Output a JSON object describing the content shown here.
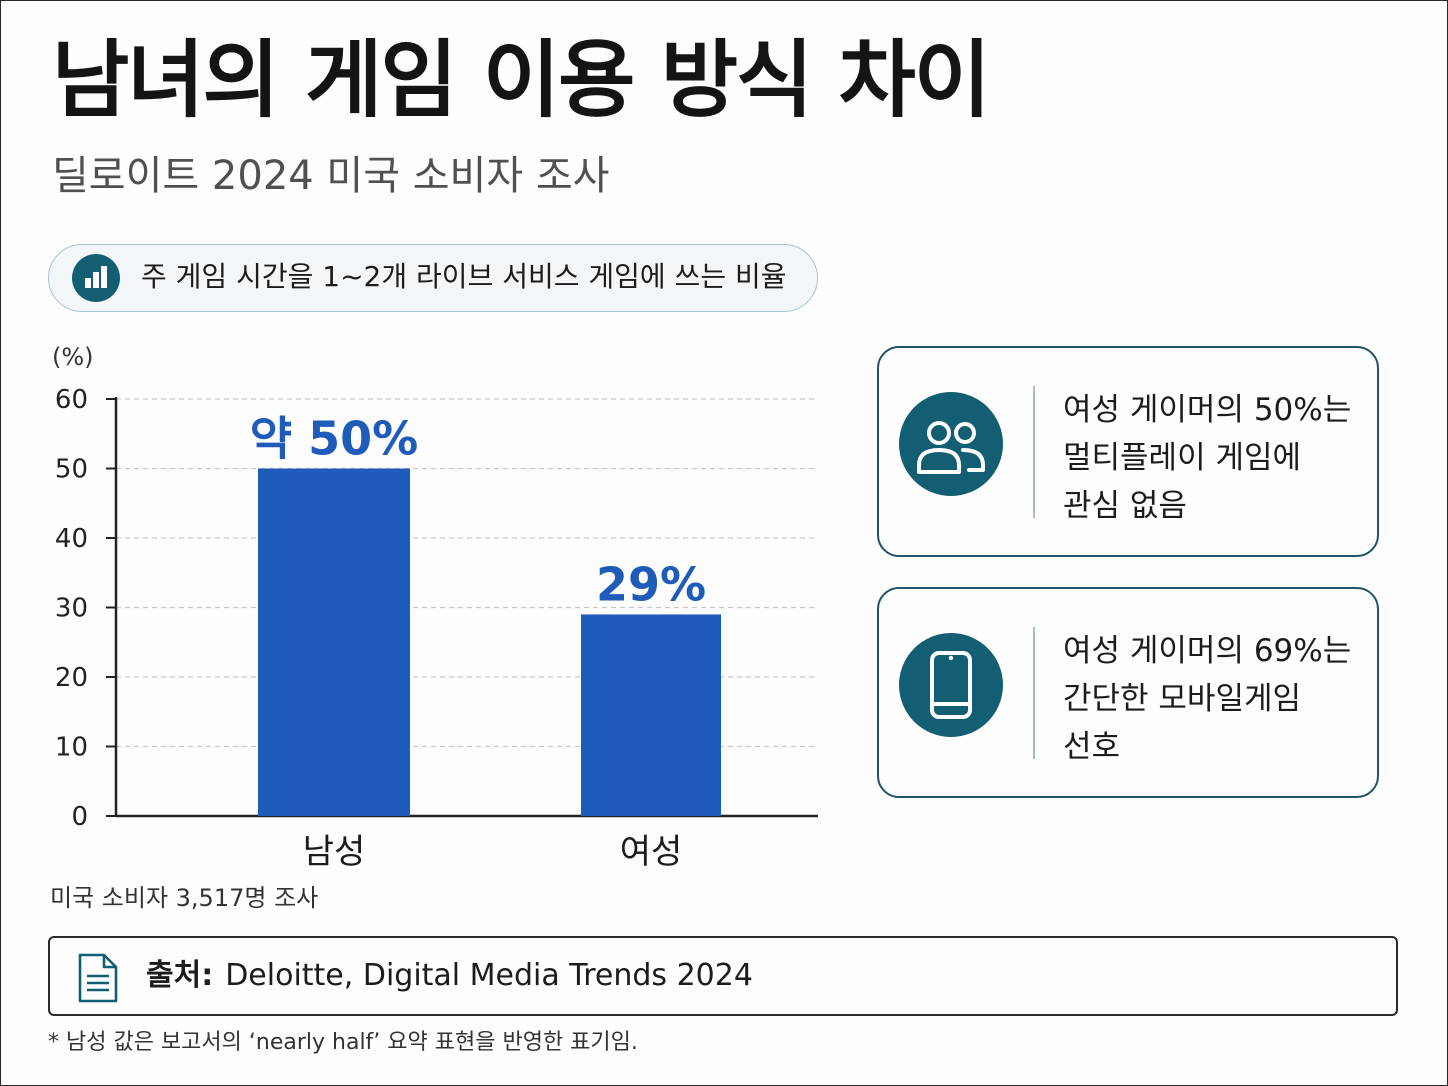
{
  "header": {
    "title": "남녀의 게임 이용 방식 차이",
    "subtitle": "딜로이트 2024 미국 소비자 조사"
  },
  "metric_pill": {
    "icon": "bar-chart-icon",
    "label": "주 게임 시간을 1~2개 라이브 서비스 게임에 쓰는 비율"
  },
  "chart_data": {
    "type": "bar",
    "categories": [
      "남성",
      "여성"
    ],
    "values": [
      50,
      29
    ],
    "value_labels": [
      "약 50%",
      "29%"
    ],
    "ylabel": "(%)",
    "ylim": [
      0,
      60
    ],
    "yticks": [
      0,
      10,
      20,
      30,
      40,
      50,
      60
    ],
    "grid": true,
    "colors": {
      "bar": "#1f5cba",
      "value_label": "#1f5cba"
    }
  },
  "insight_cards": [
    {
      "icon": "users-icon",
      "lines": [
        "여성 게이머의 50%는",
        "멀티플레이 게임에",
        "관심 없음"
      ]
    },
    {
      "icon": "smartphone-icon",
      "lines": [
        "여성 게이머의 69%는",
        "간단한 모바일게임",
        "선호"
      ]
    }
  ],
  "sample_note": "미국 소비자 3,517명 조사",
  "source": {
    "icon": "document-icon",
    "label": "출처:",
    "text": "Deloitte, Digital Media Trends 2024"
  },
  "footnote": "* 남성 값은 보고서의 ‘nearly half’ 요약 표현을 반영한 표기임.",
  "theme": {
    "accent": "#135e72",
    "card_border": "#1f5568",
    "pill_border": "#a9c4d2"
  }
}
